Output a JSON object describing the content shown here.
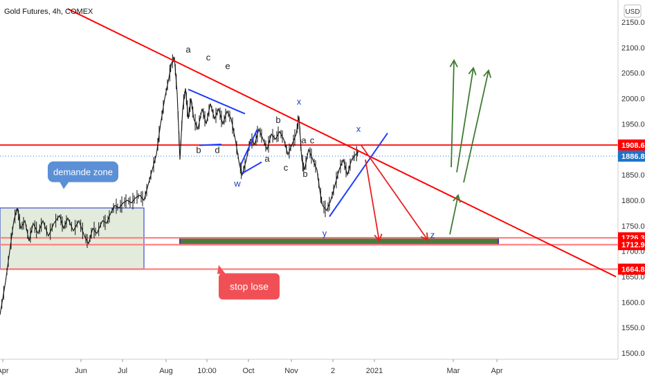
{
  "header": {
    "title": "Gold Futures, 4h, COMEX",
    "currency_button": "USD"
  },
  "chart_data": {
    "type": "candlestick",
    "ylim": [
      1490,
      2170
    ],
    "y_ticks": [
      {
        "value": 1500,
        "label": "1500.0"
      },
      {
        "value": 1550,
        "label": "1550.0"
      },
      {
        "value": 1600,
        "label": "1600.0"
      },
      {
        "value": 1650,
        "label": "1650.0"
      },
      {
        "value": 1700,
        "label": "1700.0"
      },
      {
        "value": 1750,
        "label": "1750.0"
      },
      {
        "value": 1800,
        "label": "1800.0"
      },
      {
        "value": 1850,
        "label": "1850.0"
      },
      {
        "value": 1900,
        "label": "1900.0"
      },
      {
        "value": 1950,
        "label": "1950.0"
      },
      {
        "value": 2000,
        "label": "2000.0"
      },
      {
        "value": 2050,
        "label": "2050.0"
      },
      {
        "value": 2100,
        "label": "2100.0"
      },
      {
        "value": 2150,
        "label": "2150.0"
      }
    ],
    "x_ticks": [
      "Apr",
      "Jun",
      "Jul",
      "Aug",
      "10:00",
      "Oct",
      "Nov",
      "2",
      "2021",
      "Mar",
      "Apr"
    ],
    "price_labels": [
      {
        "value": 1908.6,
        "label": "1908.6",
        "color": "#ff0000"
      },
      {
        "value": 1886.8,
        "label": "1886.8",
        "color": "#1e73c8"
      },
      {
        "value": 1726.3,
        "label": "1726.3",
        "color": "#ff0000"
      },
      {
        "value": 1712.9,
        "label": "1712.9",
        "color": "#ff0000"
      },
      {
        "value": 1664.8,
        "label": "1664.8",
        "color": "#ff0000"
      }
    ],
    "last_price": 1886.8,
    "price_path": [
      [
        0,
        1575
      ],
      [
        8,
        1640
      ],
      [
        14,
        1700
      ],
      [
        20,
        1760
      ],
      [
        25,
        1785
      ],
      [
        30,
        1745
      ],
      [
        36,
        1760
      ],
      [
        42,
        1720
      ],
      [
        48,
        1755
      ],
      [
        55,
        1735
      ],
      [
        62,
        1760
      ],
      [
        70,
        1730
      ],
      [
        78,
        1755
      ],
      [
        86,
        1770
      ],
      [
        92,
        1745
      ],
      [
        98,
        1765
      ],
      [
        106,
        1740
      ],
      [
        114,
        1760
      ],
      [
        122,
        1730
      ],
      [
        128,
        1715
      ],
      [
        134,
        1745
      ],
      [
        140,
        1735
      ],
      [
        148,
        1760
      ],
      [
        154,
        1755
      ],
      [
        160,
        1775
      ],
      [
        166,
        1790
      ],
      [
        172,
        1785
      ],
      [
        178,
        1795
      ],
      [
        184,
        1800
      ],
      [
        190,
        1795
      ],
      [
        196,
        1805
      ],
      [
        202,
        1810
      ],
      [
        208,
        1800
      ],
      [
        214,
        1830
      ],
      [
        220,
        1860
      ],
      [
        226,
        1890
      ],
      [
        232,
        1950
      ],
      [
        238,
        2000
      ],
      [
        244,
        2040
      ],
      [
        248,
        2070
      ],
      [
        252,
        2080
      ],
      [
        256,
        2010
      ],
      [
        260,
        1880
      ],
      [
        264,
        1980
      ],
      [
        268,
        2020
      ],
      [
        272,
        1960
      ],
      [
        276,
        2000
      ],
      [
        280,
        1960
      ],
      [
        286,
        1940
      ],
      [
        292,
        1980
      ],
      [
        298,
        1950
      ],
      [
        304,
        1990
      ],
      [
        310,
        1960
      ],
      [
        316,
        1980
      ],
      [
        322,
        1950
      ],
      [
        328,
        1975
      ],
      [
        334,
        1960
      ],
      [
        340,
        1920
      ],
      [
        346,
        1870
      ],
      [
        350,
        1850
      ],
      [
        356,
        1880
      ],
      [
        362,
        1920
      ],
      [
        368,
        1910
      ],
      [
        374,
        1940
      ],
      [
        380,
        1920
      ],
      [
        386,
        1900
      ],
      [
        392,
        1930
      ],
      [
        398,
        1920
      ],
      [
        404,
        1935
      ],
      [
        410,
        1920
      ],
      [
        416,
        1890
      ],
      [
        422,
        1910
      ],
      [
        428,
        1930
      ],
      [
        432,
        1965
      ],
      [
        436,
        1880
      ],
      [
        440,
        1860
      ],
      [
        446,
        1900
      ],
      [
        452,
        1880
      ],
      [
        458,
        1860
      ],
      [
        462,
        1820
      ],
      [
        466,
        1790
      ],
      [
        472,
        1780
      ],
      [
        478,
        1800
      ],
      [
        484,
        1830
      ],
      [
        490,
        1860
      ],
      [
        496,
        1880
      ],
      [
        502,
        1850
      ],
      [
        508,
        1880
      ],
      [
        514,
        1890
      ],
      [
        518,
        1895
      ]
    ],
    "demand_zone": {
      "x_start": 0,
      "x_end": 208,
      "y_low": 1664.8,
      "y_high": 1785
    },
    "target_zone": {
      "x_start": 260,
      "x_end": 720,
      "y_low": 1712.9,
      "y_high": 1726.3
    },
    "horizontal_lines": [
      {
        "value": 1908.6,
        "color": "#ff0000"
      },
      {
        "value": 1726.3,
        "color": "#ff8080"
      },
      {
        "value": 1712.9,
        "color": "#ff8080"
      },
      {
        "value": 1664.8,
        "color": "#ff8080"
      }
    ],
    "trendline": {
      "from": [
        98,
        2176
      ],
      "to": [
        890,
        1650
      ],
      "color": "#ff0000"
    },
    "blue_lines": [
      {
        "from": [
          272,
          2018
        ],
        "to": [
          354,
          1970
        ]
      },
      {
        "from": [
          288,
          1908
        ],
        "to": [
          320,
          1910
        ]
      },
      {
        "from": [
          348,
          1870
        ],
        "to": [
          372,
          1940
        ]
      },
      {
        "from": [
          350,
          1853
        ],
        "to": [
          378,
          1875
        ]
      },
      {
        "from": [
          476,
          1768
        ],
        "to": [
          560,
          1932
        ]
      }
    ],
    "red_arrows": [
      {
        "from": [
          528,
          1880
        ],
        "to": [
          548,
          1720
        ]
      },
      {
        "from": [
          522,
          1908
        ],
        "to": [
          618,
          1722
        ]
      }
    ],
    "green_arrows": [
      {
        "from": [
          650,
          1733
        ],
        "to": [
          662,
          1810
        ]
      },
      {
        "from": [
          652,
          1865
        ],
        "to": [
          656,
          2075
        ]
      },
      {
        "from": [
          660,
          1855
        ],
        "to": [
          684,
          2060
        ]
      },
      {
        "from": [
          670,
          1835
        ],
        "to": [
          706,
          2055
        ]
      }
    ],
    "wave_labels": [
      {
        "text": "a",
        "x": 272,
        "y": 2090,
        "color": "#222"
      },
      {
        "text": "c",
        "x": 301,
        "y": 2075,
        "color": "#222"
      },
      {
        "text": "e",
        "x": 329,
        "y": 2058,
        "color": "#222"
      },
      {
        "text": "b",
        "x": 287,
        "y": 1893,
        "color": "#222"
      },
      {
        "text": "d",
        "x": 314,
        "y": 1893,
        "color": "#222"
      },
      {
        "text": "w",
        "x": 343,
        "y": 1827,
        "color": "#1e3cc8"
      },
      {
        "text": "a",
        "x": 386,
        "y": 1876,
        "color": "#222"
      },
      {
        "text": "b",
        "x": 402,
        "y": 1952,
        "color": "#222"
      },
      {
        "text": "x",
        "x": 432,
        "y": 1988,
        "color": "#1e3cc8"
      },
      {
        "text": "a",
        "x": 439,
        "y": 1912,
        "color": "#222"
      },
      {
        "text": "c",
        "x": 451,
        "y": 1912,
        "color": "#222"
      },
      {
        "text": "c",
        "x": 413,
        "y": 1858,
        "color": "#222"
      },
      {
        "text": "b",
        "x": 441,
        "y": 1846,
        "color": "#222"
      },
      {
        "text": "x",
        "x": 518,
        "y": 1934,
        "color": "#1e3cc8"
      },
      {
        "text": "y",
        "x": 469,
        "y": 1729,
        "color": "#1e3cc8"
      },
      {
        "text": "z",
        "x": 625,
        "y": 1726,
        "color": "#1e3cc8"
      }
    ],
    "callouts": [
      {
        "text": "demande zone",
        "x": 120,
        "y": 1856,
        "color": "#5b8fd6"
      },
      {
        "text": "stop lose",
        "x": 360,
        "y": 1631,
        "color": "#f05055"
      }
    ]
  }
}
